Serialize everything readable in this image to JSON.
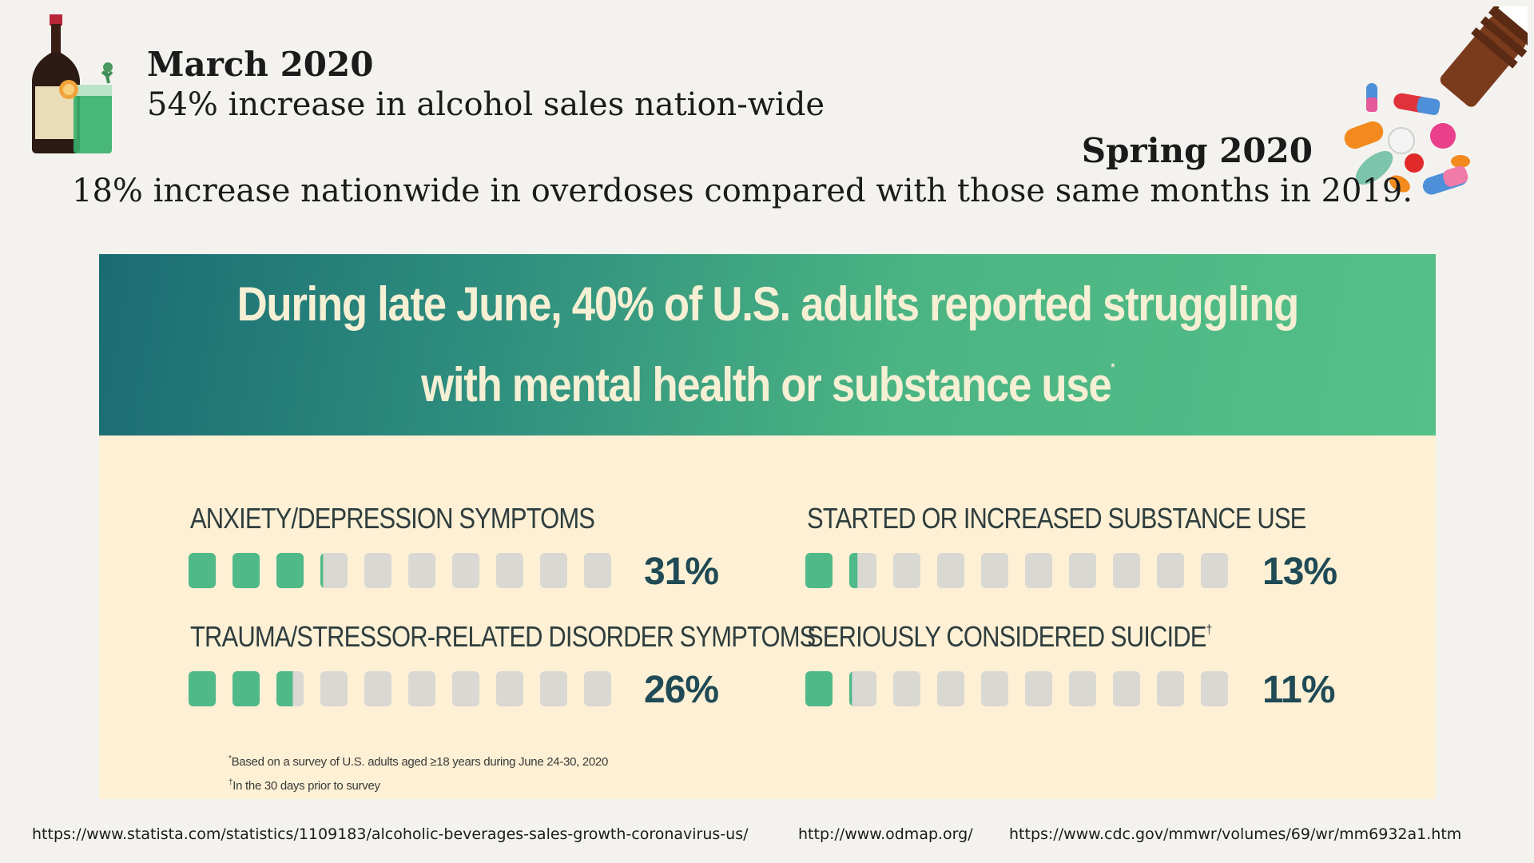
{
  "march": {
    "title": "March 2020",
    "text": "54% increase in alcohol sales nation-wide"
  },
  "spring": {
    "title": "Spring 2020",
    "text": "18% increase nationwide in overdoses compared with those same months in 2019."
  },
  "infographic": {
    "headline_line1": "During late June, 40% of U.S. adults reported struggling",
    "headline_line2": "with mental health or substance use",
    "headline_mark": "*",
    "metrics": [
      {
        "label": "ANXIETY/DEPRESSION SYMPTOMS",
        "mark": "",
        "value": "31%",
        "percent": 31
      },
      {
        "label": "STARTED OR INCREASED SUBSTANCE USE",
        "mark": "",
        "value": "13%",
        "percent": 13
      },
      {
        "label": "TRAUMA/STRESSOR-RELATED DISORDER SYMPTOMS",
        "mark": "",
        "value": "26%",
        "percent": 26
      },
      {
        "label": "SERIOUSLY CONSIDERED SUICIDE",
        "mark": "†",
        "value": "11%",
        "percent": 11
      }
    ],
    "footnote1_mark": "*",
    "footnote1": "Based on a survey of U.S. adults aged  ≥18 years during June 24-30, 2020",
    "footnote2_mark": "†",
    "footnote2": "In the 30 days prior to survey"
  },
  "colors": {
    "filled": "#4fb987",
    "empty": "#d9d8d3",
    "panel": "#fdf0d4"
  },
  "icons": {
    "left": "alcohol-bottle-and-glass-icon",
    "right": "spilled-pills-icon"
  },
  "sources": {
    "statista": "https://www.statista.com/statistics/1109183/alcoholic-beverages-sales-growth-coronavirus-us/",
    "odmap": "http://www.odmap.org/",
    "cdc": "https://www.cdc.gov/mmwr/volumes/69/wr/mm6932a1.htm"
  }
}
